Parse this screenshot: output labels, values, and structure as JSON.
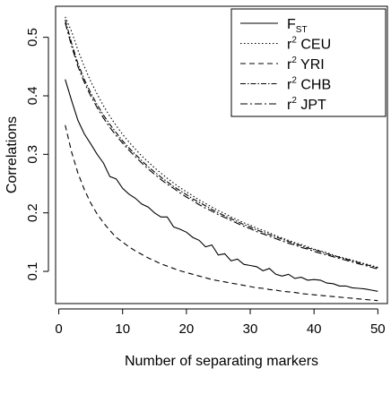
{
  "chart_data": {
    "type": "line",
    "xlabel": "Number of separating markers",
    "ylabel": "Correlations",
    "xlim": [
      -0.5,
      51.5
    ],
    "ylim": [
      0.045,
      0.553
    ],
    "xticks": [
      0,
      10,
      20,
      30,
      40,
      50
    ],
    "yticks": [
      0.1,
      0.2,
      0.3,
      0.4,
      0.5
    ],
    "xtick_labels": [
      "0",
      "10",
      "20",
      "30",
      "40",
      "50"
    ],
    "ytick_labels": [
      "0.1",
      "0.2",
      "0.3",
      "0.4",
      "0.5"
    ],
    "grid": false,
    "legend_position": "top-right",
    "x": [
      1,
      2,
      3,
      4,
      5,
      6,
      7,
      8,
      9,
      10,
      11,
      12,
      13,
      14,
      15,
      16,
      17,
      18,
      19,
      20,
      21,
      22,
      23,
      24,
      25,
      26,
      27,
      28,
      29,
      30,
      31,
      32,
      33,
      34,
      35,
      36,
      37,
      38,
      39,
      40,
      41,
      42,
      43,
      44,
      45,
      46,
      47,
      48,
      49,
      50
    ],
    "series": [
      {
        "name": "F",
        "name_sub": "ST",
        "dash": "",
        "values": [
          0.428,
          0.392,
          0.358,
          0.335,
          0.318,
          0.3,
          0.285,
          0.262,
          0.258,
          0.242,
          0.232,
          0.225,
          0.215,
          0.21,
          0.2,
          0.193,
          0.193,
          0.176,
          0.172,
          0.167,
          0.158,
          0.153,
          0.142,
          0.145,
          0.128,
          0.13,
          0.118,
          0.121,
          0.112,
          0.11,
          0.108,
          0.101,
          0.105,
          0.095,
          0.092,
          0.095,
          0.088,
          0.09,
          0.085,
          0.086,
          0.085,
          0.08,
          0.079,
          0.075,
          0.075,
          0.072,
          0.071,
          0.07,
          0.068,
          0.066
        ]
      },
      {
        "name": "r",
        "name_sup": "2",
        "name_rest": " CEU",
        "dash": "1.5,2.5",
        "values": [
          0.535,
          0.51,
          0.478,
          0.45,
          0.425,
          0.403,
          0.383,
          0.365,
          0.349,
          0.334,
          0.321,
          0.309,
          0.297,
          0.287,
          0.277,
          0.268,
          0.259,
          0.251,
          0.243,
          0.236,
          0.229,
          0.222,
          0.216,
          0.21,
          0.204,
          0.199,
          0.193,
          0.188,
          0.183,
          0.179,
          0.174,
          0.17,
          0.166,
          0.161,
          0.157,
          0.153,
          0.149,
          0.146,
          0.142,
          0.138,
          0.135,
          0.132,
          0.128,
          0.125,
          0.122,
          0.119,
          0.116,
          0.113,
          0.11,
          0.107
        ]
      },
      {
        "name": "r",
        "name_sup": "2",
        "name_rest": " YRI",
        "dash": "6,4",
        "values": [
          0.35,
          0.304,
          0.268,
          0.24,
          0.217,
          0.198,
          0.183,
          0.17,
          0.158,
          0.15,
          0.142,
          0.135,
          0.129,
          0.123,
          0.118,
          0.113,
          0.109,
          0.105,
          0.101,
          0.098,
          0.095,
          0.092,
          0.089,
          0.086,
          0.084,
          0.082,
          0.08,
          0.078,
          0.076,
          0.074,
          0.072,
          0.071,
          0.069,
          0.068,
          0.066,
          0.065,
          0.064,
          0.062,
          0.061,
          0.06,
          0.059,
          0.058,
          0.057,
          0.056,
          0.055,
          0.054,
          0.053,
          0.052,
          0.051,
          0.05
        ]
      },
      {
        "name": "r",
        "name_sup": "2",
        "name_rest": " CHB",
        "dash": "6,2,1.5,2",
        "values": [
          0.53,
          0.49,
          0.455,
          0.428,
          0.405,
          0.385,
          0.367,
          0.351,
          0.337,
          0.323,
          0.311,
          0.3,
          0.289,
          0.279,
          0.27,
          0.261,
          0.253,
          0.245,
          0.238,
          0.231,
          0.224,
          0.218,
          0.212,
          0.206,
          0.2,
          0.195,
          0.19,
          0.185,
          0.18,
          0.176,
          0.171,
          0.167,
          0.163,
          0.159,
          0.155,
          0.151,
          0.147,
          0.144,
          0.14,
          0.137,
          0.134,
          0.13,
          0.127,
          0.124,
          0.121,
          0.118,
          0.115,
          0.112,
          0.109,
          0.106
        ]
      },
      {
        "name": "r",
        "name_sup": "2",
        "name_rest": " JPT",
        "dash": "8,3,2,3",
        "values": [
          0.525,
          0.485,
          0.45,
          0.423,
          0.4,
          0.38,
          0.362,
          0.346,
          0.332,
          0.319,
          0.307,
          0.296,
          0.285,
          0.275,
          0.266,
          0.257,
          0.249,
          0.242,
          0.234,
          0.227,
          0.221,
          0.214,
          0.208,
          0.203,
          0.197,
          0.192,
          0.187,
          0.182,
          0.177,
          0.173,
          0.168,
          0.164,
          0.16,
          0.156,
          0.152,
          0.148,
          0.145,
          0.141,
          0.138,
          0.134,
          0.131,
          0.128,
          0.125,
          0.122,
          0.119,
          0.116,
          0.113,
          0.11,
          0.107,
          0.104
        ]
      }
    ]
  }
}
